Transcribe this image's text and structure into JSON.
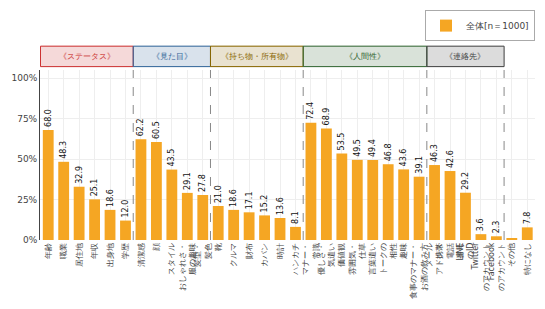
{
  "chart_data": {
    "type": "bar",
    "categories": [
      "年齢",
      "職業",
      "居住地",
      "年収",
      "出身地",
      "学歴",
      "清潔感",
      "顔",
      "スタイル",
      "おしゃれさ・\n服の趣味",
      "髪型・\n髪色",
      "靴",
      "クルマ",
      "財布",
      "カバン",
      "時計",
      "ハンカチ",
      "マナー・\n常識",
      "優しさ・\n気遣い",
      "価値観",
      "雰囲気・\n仕草",
      "言葉遣い",
      "トークの\n相性",
      "趣味",
      "食事のマナー・\nお酒の飲み方",
      "メール\nアドレス",
      "携帯\n電話\n番号",
      "LINE\nのID",
      "Twitter\nのアカウント",
      "Facebook\nのアカウント",
      "その他",
      "特になし"
    ],
    "series": [
      {
        "name": "全体[n＝1000]",
        "color": "#F5A623",
        "values": [
          68.0,
          48.3,
          32.9,
          25.1,
          18.6,
          12.0,
          62.2,
          60.5,
          43.5,
          29.1,
          27.8,
          21.0,
          18.6,
          17.1,
          15.2,
          13.6,
          8.1,
          72.4,
          68.9,
          53.5,
          49.5,
          49.4,
          46.8,
          43.6,
          39.1,
          46.3,
          42.6,
          29.2,
          3.6,
          2.3,
          0.9,
          7.8
        ],
        "value_labels": [
          "68.0",
          "48.3",
          "32.9",
          "25.1",
          "18.6",
          "12.0",
          "62.2",
          "60.5",
          "43.5",
          "29.1",
          "27.8",
          "21.0",
          "18.6",
          "17.1",
          "15.2",
          "13.6",
          "8.1",
          "72.4",
          "68.9",
          "53.5",
          "49.5",
          "49.4",
          "46.8",
          "43.6",
          "39.1",
          "46.3",
          "42.6",
          "29.2",
          "3.6",
          "2.3",
          null,
          "7.8"
        ]
      }
    ],
    "groups": [
      {
        "label": "《ステータス》",
        "from": "年齢",
        "to": "学歴",
        "color": "#CC3333"
      },
      {
        "label": "《見た目》",
        "from": "清潔感",
        "to": "髪型・\n髪色",
        "color": "#336699"
      },
      {
        "label": "《持ち物・所有物》",
        "from": "靴",
        "to": "ハンカチ",
        "color": "#886600"
      },
      {
        "label": "《人間性》",
        "from": "マナー・\n常識",
        "to": "食事のマナー・\nお酒の飲み方",
        "color": "#336633"
      },
      {
        "label": "《連絡先》",
        "from": "メール\nアドレス",
        "to": "Facebook\nのアカウント",
        "color": "#444444"
      }
    ],
    "ylim": [
      0,
      105
    ],
    "yticks": [
      {
        "value": 0,
        "label": "0%"
      },
      {
        "value": 25,
        "label": "25%"
      },
      {
        "value": 50,
        "label": "50%"
      },
      {
        "value": 75,
        "label": "75%"
      },
      {
        "value": 100,
        "label": "100%"
      }
    ],
    "grid": true,
    "legend": "upper right",
    "data_labels": true
  }
}
